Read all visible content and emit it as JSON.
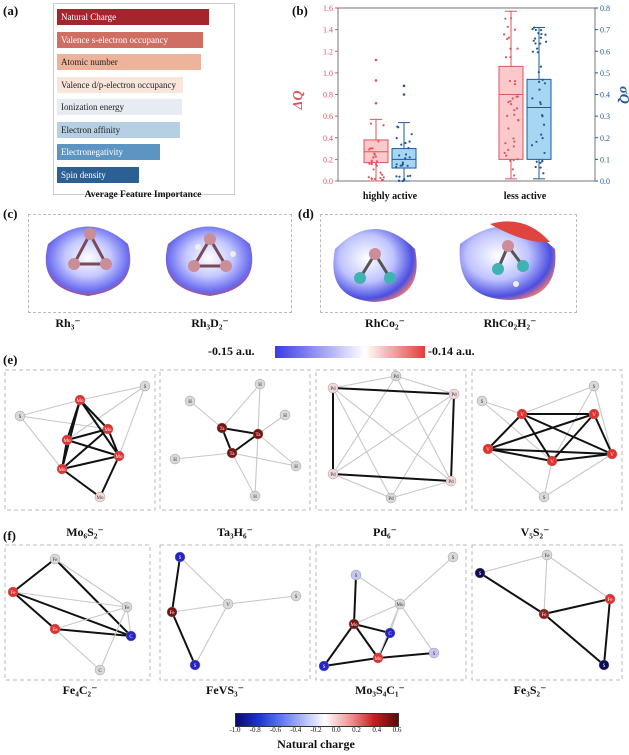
{
  "panels": {
    "a": "(a)",
    "b": "(b)",
    "c": "(c)",
    "d": "(d)",
    "e": "(e)",
    "f": "(f)"
  },
  "feature_importance": {
    "xlabel": "Average Feature Importance",
    "features": [
      {
        "label": "Natural Charge",
        "value": 1.0,
        "color": "#a3262f"
      },
      {
        "label": "Valence s-electron occupancy",
        "value": 0.96,
        "color": "#cf6e63"
      },
      {
        "label": "Atomic number",
        "value": 0.95,
        "color": "#edb39b"
      },
      {
        "label": "Valence d/p-electron occupancy",
        "value": 0.83,
        "color": "#f8e6dc"
      },
      {
        "label": "Ionization energy",
        "value": 0.82,
        "color": "#e7ecf2"
      },
      {
        "label": "Electron affinity",
        "value": 0.81,
        "color": "#b6d0e3"
      },
      {
        "label": "Electronegativity",
        "value": 0.68,
        "color": "#5d95c2"
      },
      {
        "label": "Spin density",
        "value": 0.54,
        "color": "#2c5f93"
      }
    ]
  },
  "chart_data": {
    "type": "box",
    "categories": [
      "highly active",
      "less active"
    ],
    "left_axis": {
      "label": "ΔQ",
      "ylim": [
        0,
        1.6
      ],
      "ticks": [
        "0.0",
        "0.2",
        "0.4",
        "0.6",
        "0.8",
        "1.0",
        "1.2",
        "1.4",
        "1.6"
      ],
      "color": "#e0545b"
    },
    "right_axis": {
      "label": "σQ",
      "ylim": [
        0,
        0.8
      ],
      "ticks": [
        "0.0",
        "0.1",
        "0.2",
        "0.3",
        "0.4",
        "0.5",
        "0.6",
        "0.7",
        "0.8"
      ],
      "color": "#1f5a96"
    },
    "series": [
      {
        "name": "ΔQ",
        "axis": "left",
        "color": "#e0545b",
        "boxes": [
          {
            "min": 0.0,
            "q1": 0.17,
            "median": 0.27,
            "q3": 0.38,
            "max": 0.57,
            "outliers": [
              0.72,
              0.93,
              1.12
            ]
          },
          {
            "min": 0.02,
            "q1": 0.2,
            "median": 0.8,
            "q3": 1.06,
            "max": 1.57,
            "outliers": []
          }
        ]
      },
      {
        "name": "σQ",
        "axis": "right",
        "color": "#1f5a96",
        "boxes": [
          {
            "min": 0.0,
            "q1": 0.06,
            "median": 0.1,
            "q3": 0.15,
            "max": 0.27,
            "outliers": [
              0.4,
              0.44
            ]
          },
          {
            "min": 0.01,
            "q1": 0.1,
            "median": 0.34,
            "q3": 0.47,
            "max": 0.71,
            "outliers": []
          }
        ]
      }
    ]
  },
  "clusters_c": [
    "Rh₃⁻",
    "Rh₃D₂⁻"
  ],
  "clusters_d": [
    "RhCo₂⁻",
    "RhCo₂H₂⁻"
  ],
  "esp_scale": {
    "min_label": "-0.15 a.u.",
    "max_label": "-0.14 a.u."
  },
  "graphs_e": [
    {
      "caption": "Mo₆S₂⁻",
      "metal": "Mo",
      "ligand": "S"
    },
    {
      "caption": "Ta₃H₆⁻",
      "metal": "Ta",
      "ligand": "H"
    },
    {
      "caption": "Pd₆⁻",
      "metal": "Pd",
      "ligand": ""
    },
    {
      "caption": "V₅S₂⁻",
      "metal": "V",
      "ligand": "S"
    }
  ],
  "graphs_f": [
    {
      "caption": "Fe₄C₂⁻",
      "metal": "Fe",
      "ligand": "C"
    },
    {
      "caption": "FeVS₃⁻",
      "metal": "Fe",
      "ligand": "S",
      "other": "V"
    },
    {
      "caption": "Mo₃S₄C₁⁻",
      "metal": "Mo",
      "ligand": "S",
      "other": "C"
    },
    {
      "caption": "Fe₃S₂⁻",
      "metal": "Fe",
      "ligand": "S"
    }
  ],
  "colorbar": {
    "title": "Natural charge",
    "ticks": [
      "-1.0",
      "-0.8",
      "-0.6",
      "-0.4",
      "-0.2",
      "0.0",
      "0.2",
      "0.4",
      "0.6"
    ]
  }
}
